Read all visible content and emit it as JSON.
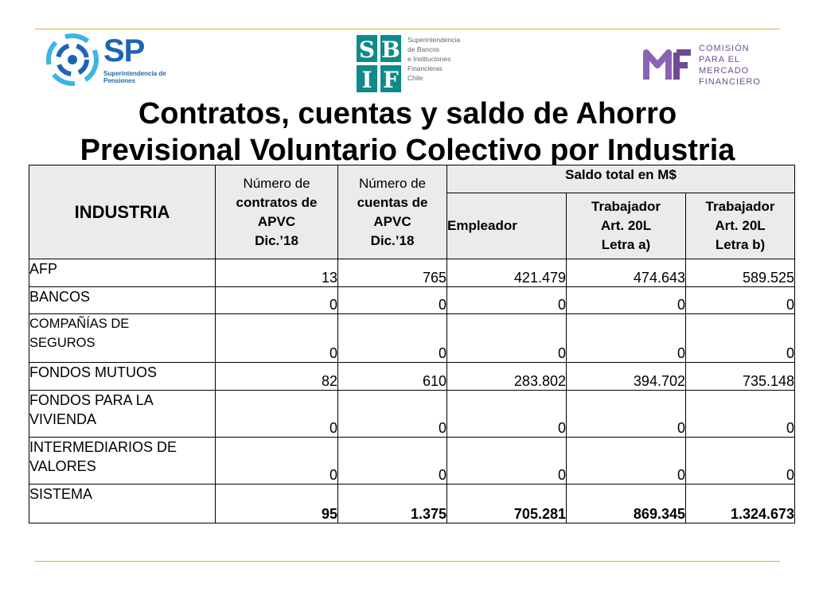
{
  "logos": {
    "sp": {
      "name": "SP",
      "subtitle": "Superintendencia de\nPensiones",
      "color": "#1e64b4"
    },
    "sbif": {
      "mark": "SBIF",
      "subtitle": "Superintendencia\nde Bancos\ne Instituciones\nFinancieras\nChile",
      "color": "#0f8a8a"
    },
    "cmf": {
      "mark": "CMF",
      "subtitle": "COMISIÓN\nPARA EL MERCADO\nFINANCIERO",
      "color": "#6e4a96"
    }
  },
  "title": {
    "line1": "Contratos, cuentas y saldo de Ahorro",
    "line2": "Previsional Voluntario Colectivo por Industria"
  },
  "table": {
    "headers": {
      "industria": "INDUSTRIA",
      "contratos": {
        "l1": "Número de",
        "l2": "contratos de",
        "l3": "APVC",
        "l4": "Dic.’18"
      },
      "cuentas": {
        "l1": "Número de",
        "l2": "cuentas de",
        "l3": "APVC",
        "l4": "Dic.’18"
      },
      "saldo": "Saldo total en M$",
      "empleador": "Empleador",
      "trab_a": {
        "l1": "Trabajador",
        "l2": "Art. 20L",
        "l3": "Letra a)"
      },
      "trab_b": {
        "l1": "Trabajador",
        "l2": "Art. 20L",
        "l3": "Letra b)"
      }
    },
    "rows": [
      {
        "industria": "AFP",
        "contratos": "13",
        "cuentas": "765",
        "empleador": "421.479",
        "trab_a": "474.643",
        "trab_b": "589.525"
      },
      {
        "industria": "BANCOS",
        "contratos": "0",
        "cuentas": "0",
        "empleador": "0",
        "trab_a": "0",
        "trab_b": "0"
      },
      {
        "industria": "COMPAÑÍAS DE\nSEGUROS",
        "contratos": "0",
        "cuentas": "0",
        "empleador": "0",
        "trab_a": "0",
        "trab_b": "0"
      },
      {
        "industria": "FONDOS MUTUOS",
        "contratos": "82",
        "cuentas": "610",
        "empleador": "283.802",
        "trab_a": "394.702",
        "trab_b": "735.148"
      },
      {
        "industria": "FONDOS PARA LA\nVIVIENDA",
        "contratos": "0",
        "cuentas": "0",
        "empleador": "0",
        "trab_a": "0",
        "trab_b": "0"
      },
      {
        "industria": "INTERMEDIARIOS DE\nVALORES",
        "contratos": "0",
        "cuentas": "0",
        "empleador": "0",
        "trab_a": "0",
        "trab_b": "0"
      },
      {
        "industria": "SISTEMA",
        "contratos": "95",
        "cuentas": "1.375",
        "empleador": "705.281",
        "trab_a": "869.345",
        "trab_b": "1.324.673"
      }
    ]
  },
  "colors": {
    "rule": "#f0a830",
    "header_bg": "#ebebeb"
  }
}
